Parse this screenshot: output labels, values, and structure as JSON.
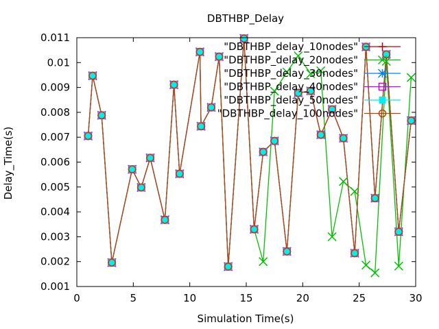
{
  "chart_data": {
    "type": "line",
    "title": "DBTHBP_Delay",
    "xlabel": "Simulation Time(s)",
    "ylabel": "Delay_Time(s)",
    "xlim": [
      0,
      30
    ],
    "ylim": [
      0.001,
      0.011
    ],
    "xticks": [
      0,
      5,
      10,
      15,
      20,
      25,
      30
    ],
    "yticks": [
      0.001,
      0.002,
      0.003,
      0.004,
      0.005,
      0.006,
      0.007,
      0.008,
      0.009,
      0.01,
      0.011
    ],
    "grid": false,
    "legend_position": "top-right",
    "series": [
      {
        "name": "\"DBTHBP_delay_10nodes\"",
        "color": "#c00000",
        "marker": "plus",
        "x": [
          1.0,
          1.4,
          2.2,
          3.1,
          4.9,
          5.7,
          6.5,
          7.8,
          8.6,
          9.1,
          10.9,
          11.0,
          11.9,
          12.6,
          13.4,
          14.8,
          15.7,
          16.5,
          17.5,
          18.6,
          19.6,
          20.7,
          21.6,
          22.6,
          23.6,
          24.6,
          25.6,
          26.4,
          27.4,
          28.5,
          29.6
        ],
        "y": [
          0.00705,
          0.00947,
          0.00788,
          0.00196,
          0.00571,
          0.00498,
          0.00617,
          0.00368,
          0.00911,
          0.00553,
          0.01043,
          0.00744,
          0.0082,
          0.01024,
          0.0018,
          0.01097,
          0.0033,
          0.00641,
          0.00685,
          0.00241,
          0.00878,
          0.00886,
          0.0071,
          0.00812,
          0.00696,
          0.00234,
          0.01063,
          0.00455,
          0.01033,
          0.0032,
          0.00767
        ]
      },
      {
        "name": "\"DBTHBP_delay_20nodes\"",
        "color": "#00c000",
        "marker": "x",
        "x": [
          1.0,
          1.4,
          2.2,
          3.1,
          4.9,
          5.7,
          6.5,
          7.8,
          8.6,
          9.1,
          10.9,
          11.0,
          11.9,
          12.6,
          13.4,
          14.8,
          15.7,
          16.5,
          17.5,
          18.6,
          19.6,
          20.7,
          21.6,
          22.6,
          23.6,
          24.6,
          25.6,
          26.4,
          27.4,
          28.5,
          29.6
        ],
        "y": [
          0.00705,
          0.00947,
          0.00788,
          0.00196,
          0.00571,
          0.00498,
          0.00617,
          0.00368,
          0.00911,
          0.00553,
          0.01043,
          0.00744,
          0.0082,
          0.01024,
          0.0018,
          0.01097,
          0.0033,
          0.002,
          0.00885,
          0.00962,
          0.01027,
          0.00955,
          0.00967,
          0.003,
          0.00522,
          0.00482,
          0.00186,
          0.00155,
          0.01005,
          0.00182,
          0.0094
        ]
      },
      {
        "name": "\"DBTHBP_delay_30nodes\"",
        "color": "#0080ff",
        "marker": "star",
        "x": [
          1.0,
          1.4,
          2.2,
          3.1,
          4.9,
          5.7,
          6.5,
          7.8,
          8.6,
          9.1,
          10.9,
          11.0,
          11.9,
          12.6,
          13.4,
          14.8,
          15.7,
          16.5,
          17.5,
          18.6,
          19.6,
          20.7,
          21.6,
          22.6,
          23.6,
          24.6,
          25.6,
          26.4,
          27.4,
          28.5,
          29.6
        ],
        "y": [
          0.00705,
          0.00947,
          0.00788,
          0.00196,
          0.00571,
          0.00498,
          0.00617,
          0.00368,
          0.00911,
          0.00553,
          0.01043,
          0.00744,
          0.0082,
          0.01024,
          0.0018,
          0.01097,
          0.0033,
          0.00641,
          0.00685,
          0.00241,
          0.00878,
          0.00886,
          0.0071,
          0.00812,
          0.00696,
          0.00234,
          0.01063,
          0.00455,
          0.01033,
          0.0032,
          0.00767
        ]
      },
      {
        "name": "\"DBTHBP_delay_40nodes\"",
        "color": "#c000ff",
        "marker": "square",
        "x": [
          1.0,
          1.4,
          2.2,
          3.1,
          4.9,
          5.7,
          6.5,
          7.8,
          8.6,
          9.1,
          10.9,
          11.0,
          11.9,
          12.6,
          13.4,
          14.8,
          15.7,
          16.5,
          17.5,
          18.6,
          19.6,
          20.7,
          21.6,
          22.6,
          23.6,
          24.6,
          25.6,
          26.4,
          27.4,
          28.5,
          29.6
        ],
        "y": [
          0.00705,
          0.00947,
          0.00788,
          0.00196,
          0.00571,
          0.00498,
          0.00617,
          0.00368,
          0.00911,
          0.00553,
          0.01043,
          0.00744,
          0.0082,
          0.01024,
          0.0018,
          0.01097,
          0.0033,
          0.00641,
          0.00685,
          0.00241,
          0.00878,
          0.00886,
          0.0071,
          0.00812,
          0.00696,
          0.00234,
          0.01063,
          0.00455,
          0.01033,
          0.0032,
          0.00767
        ]
      },
      {
        "name": "\"DBTHBP_delay_50nodes\"",
        "color": "#00eeee",
        "marker": "filled-square",
        "x": [
          1.0,
          1.4,
          2.2,
          3.1,
          4.9,
          5.7,
          6.5,
          7.8,
          8.6,
          9.1,
          10.9,
          11.0,
          11.9,
          12.6,
          13.4,
          14.8,
          15.7,
          16.5,
          17.5,
          18.6,
          19.6,
          20.7,
          21.6,
          22.6,
          23.6,
          24.6,
          25.6,
          26.4,
          27.4,
          28.5,
          29.6
        ],
        "y": [
          0.00705,
          0.00947,
          0.00788,
          0.00196,
          0.00571,
          0.00498,
          0.00617,
          0.00368,
          0.00911,
          0.00553,
          0.01043,
          0.00744,
          0.0082,
          0.01024,
          0.0018,
          0.01097,
          0.0033,
          0.00641,
          0.00685,
          0.00241,
          0.00878,
          0.00886,
          0.0071,
          0.00812,
          0.00696,
          0.00234,
          0.01063,
          0.00455,
          0.01033,
          0.0032,
          0.00767
        ]
      },
      {
        "name": "\"DBTHBP_delay_100nodes\"",
        "color": "#c04000",
        "marker": "circle",
        "x": [
          1.0,
          1.4,
          2.2,
          3.1,
          4.9,
          5.7,
          6.5,
          7.8,
          8.6,
          9.1,
          10.9,
          11.0,
          11.9,
          12.6,
          13.4,
          14.8,
          15.7,
          16.5,
          17.5,
          18.6,
          19.6,
          20.7,
          21.6,
          22.6,
          23.6,
          24.6,
          25.6,
          26.4,
          27.4,
          28.5,
          29.6
        ],
        "y": [
          0.00705,
          0.00947,
          0.00788,
          0.00196,
          0.00571,
          0.00498,
          0.00617,
          0.00368,
          0.00911,
          0.00553,
          0.01043,
          0.00744,
          0.0082,
          0.01024,
          0.0018,
          0.01097,
          0.0033,
          0.00641,
          0.00685,
          0.00241,
          0.00878,
          0.00886,
          0.0071,
          0.00812,
          0.00696,
          0.00234,
          0.01063,
          0.00455,
          0.01033,
          0.0032,
          0.00767
        ]
      }
    ]
  }
}
